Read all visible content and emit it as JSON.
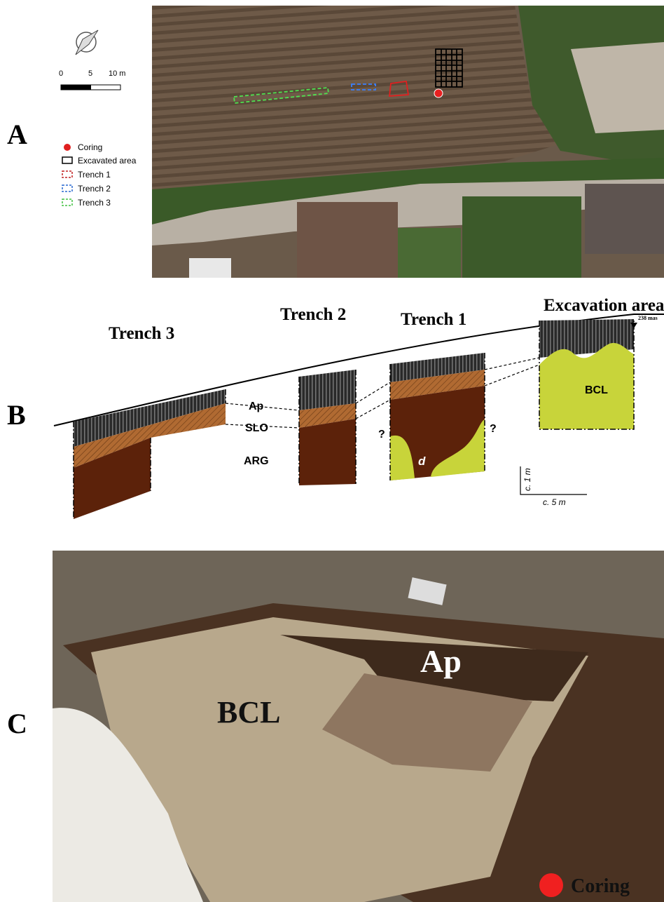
{
  "panels": [
    {
      "label": "A"
    },
    {
      "label": "B"
    },
    {
      "label": "C"
    }
  ],
  "map": {
    "scale": {
      "ticks": [
        "0",
        "5",
        "10 m"
      ]
    },
    "legend": [
      {
        "label": "Coring"
      },
      {
        "label": "Excavated area"
      },
      {
        "label": "Trench 1"
      },
      {
        "label": "Trench 2"
      },
      {
        "label": "Trench 3"
      }
    ]
  },
  "section": {
    "trenches": [
      "Trench 3",
      "Trench 2",
      "Trench 1",
      "Excavation area"
    ],
    "layers": [
      "Ap",
      "SLO",
      "ARG"
    ],
    "questions": [
      "?",
      "?"
    ],
    "d": "d",
    "bcl": "BCL",
    "elevation": "238 mas",
    "scale_v": "c. 1 m",
    "scale_h": "c. 5 m"
  },
  "photo": {
    "ap": "Ap",
    "bcl": "BCL",
    "coring": "Coring"
  }
}
